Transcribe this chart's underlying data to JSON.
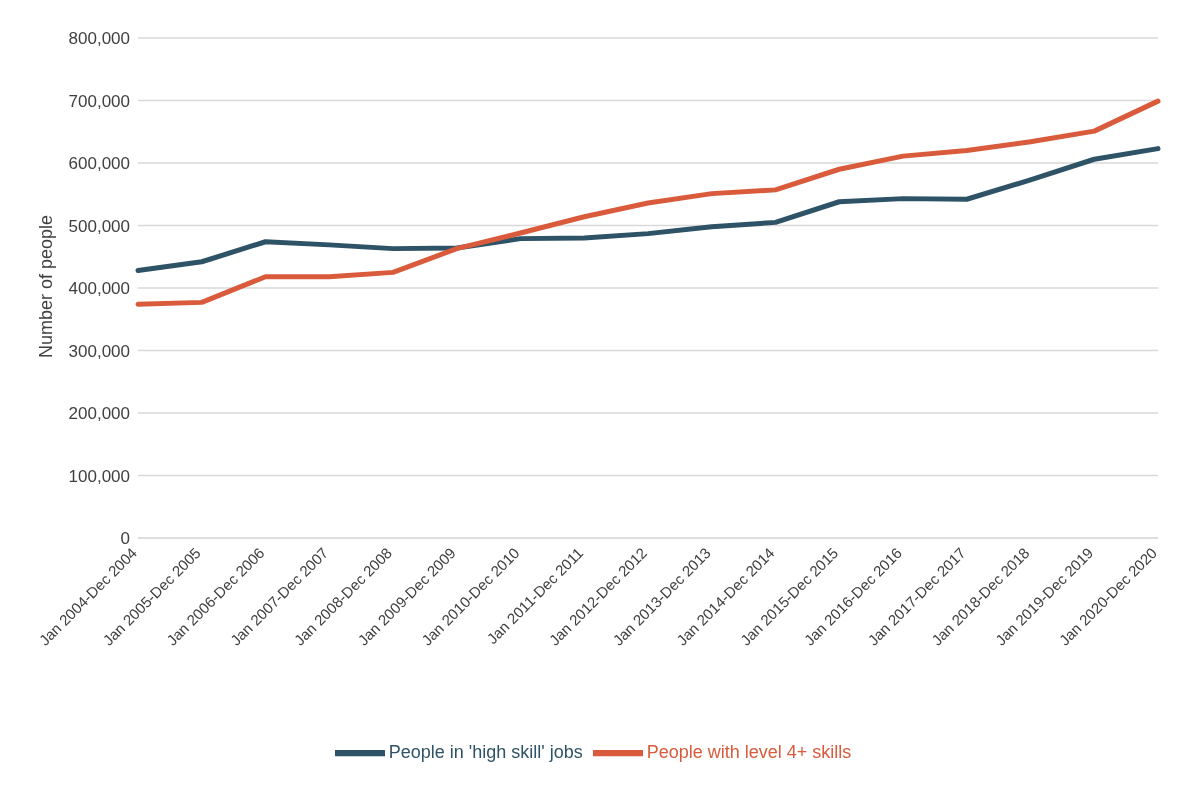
{
  "chart_data": {
    "type": "line",
    "ylabel": "Number of people",
    "categories": [
      "Jan 2004-Dec 2004",
      "Jan 2005-Dec 2005",
      "Jan 2006-Dec 2006",
      "Jan 2007-Dec 2007",
      "Jan 2008-Dec 2008",
      "Jan 2009-Dec 2009",
      "Jan 2010-Dec 2010",
      "Jan 2011-Dec 2011",
      "Jan 2012-Dec 2012",
      "Jan 2013-Dec 2013",
      "Jan 2014-Dec 2014",
      "Jan 2015-Dec 2015",
      "Jan 2016-Dec 2016",
      "Jan 2017-Dec 2017",
      "Jan 2018-Dec 2018",
      "Jan 2019-Dec 2019",
      "Jan 2020-Dec 2020"
    ],
    "series": [
      {
        "name": "People in 'high skill' jobs",
        "color": "#2e5266",
        "values": [
          428000,
          442000,
          474000,
          469000,
          463000,
          464000,
          479000,
          480000,
          487000,
          498000,
          505000,
          538000,
          543000,
          542000,
          573000,
          606000,
          623000
        ]
      },
      {
        "name": "People with level 4+ skills",
        "color": "#d95b3c",
        "values": [
          374000,
          377000,
          418000,
          418000,
          425000,
          463000,
          488000,
          514000,
          536000,
          551000,
          557000,
          590000,
          611000,
          620000,
          634000,
          651000,
          699000
        ]
      }
    ],
    "ylim": [
      0,
      800000
    ],
    "yticks": [
      {
        "value": 0,
        "label": "0"
      },
      {
        "value": 100000,
        "label": "100,000"
      },
      {
        "value": 200000,
        "label": "200,000"
      },
      {
        "value": 300000,
        "label": "300,000"
      },
      {
        "value": 400000,
        "label": "400,000"
      },
      {
        "value": 500000,
        "label": "500,000"
      },
      {
        "value": 600000,
        "label": "600,000"
      },
      {
        "value": 700000,
        "label": "700,000"
      },
      {
        "value": 800000,
        "label": "800,000"
      }
    ],
    "grid": "y",
    "legend": "bottom",
    "marker": "none",
    "line_style": "solid"
  }
}
